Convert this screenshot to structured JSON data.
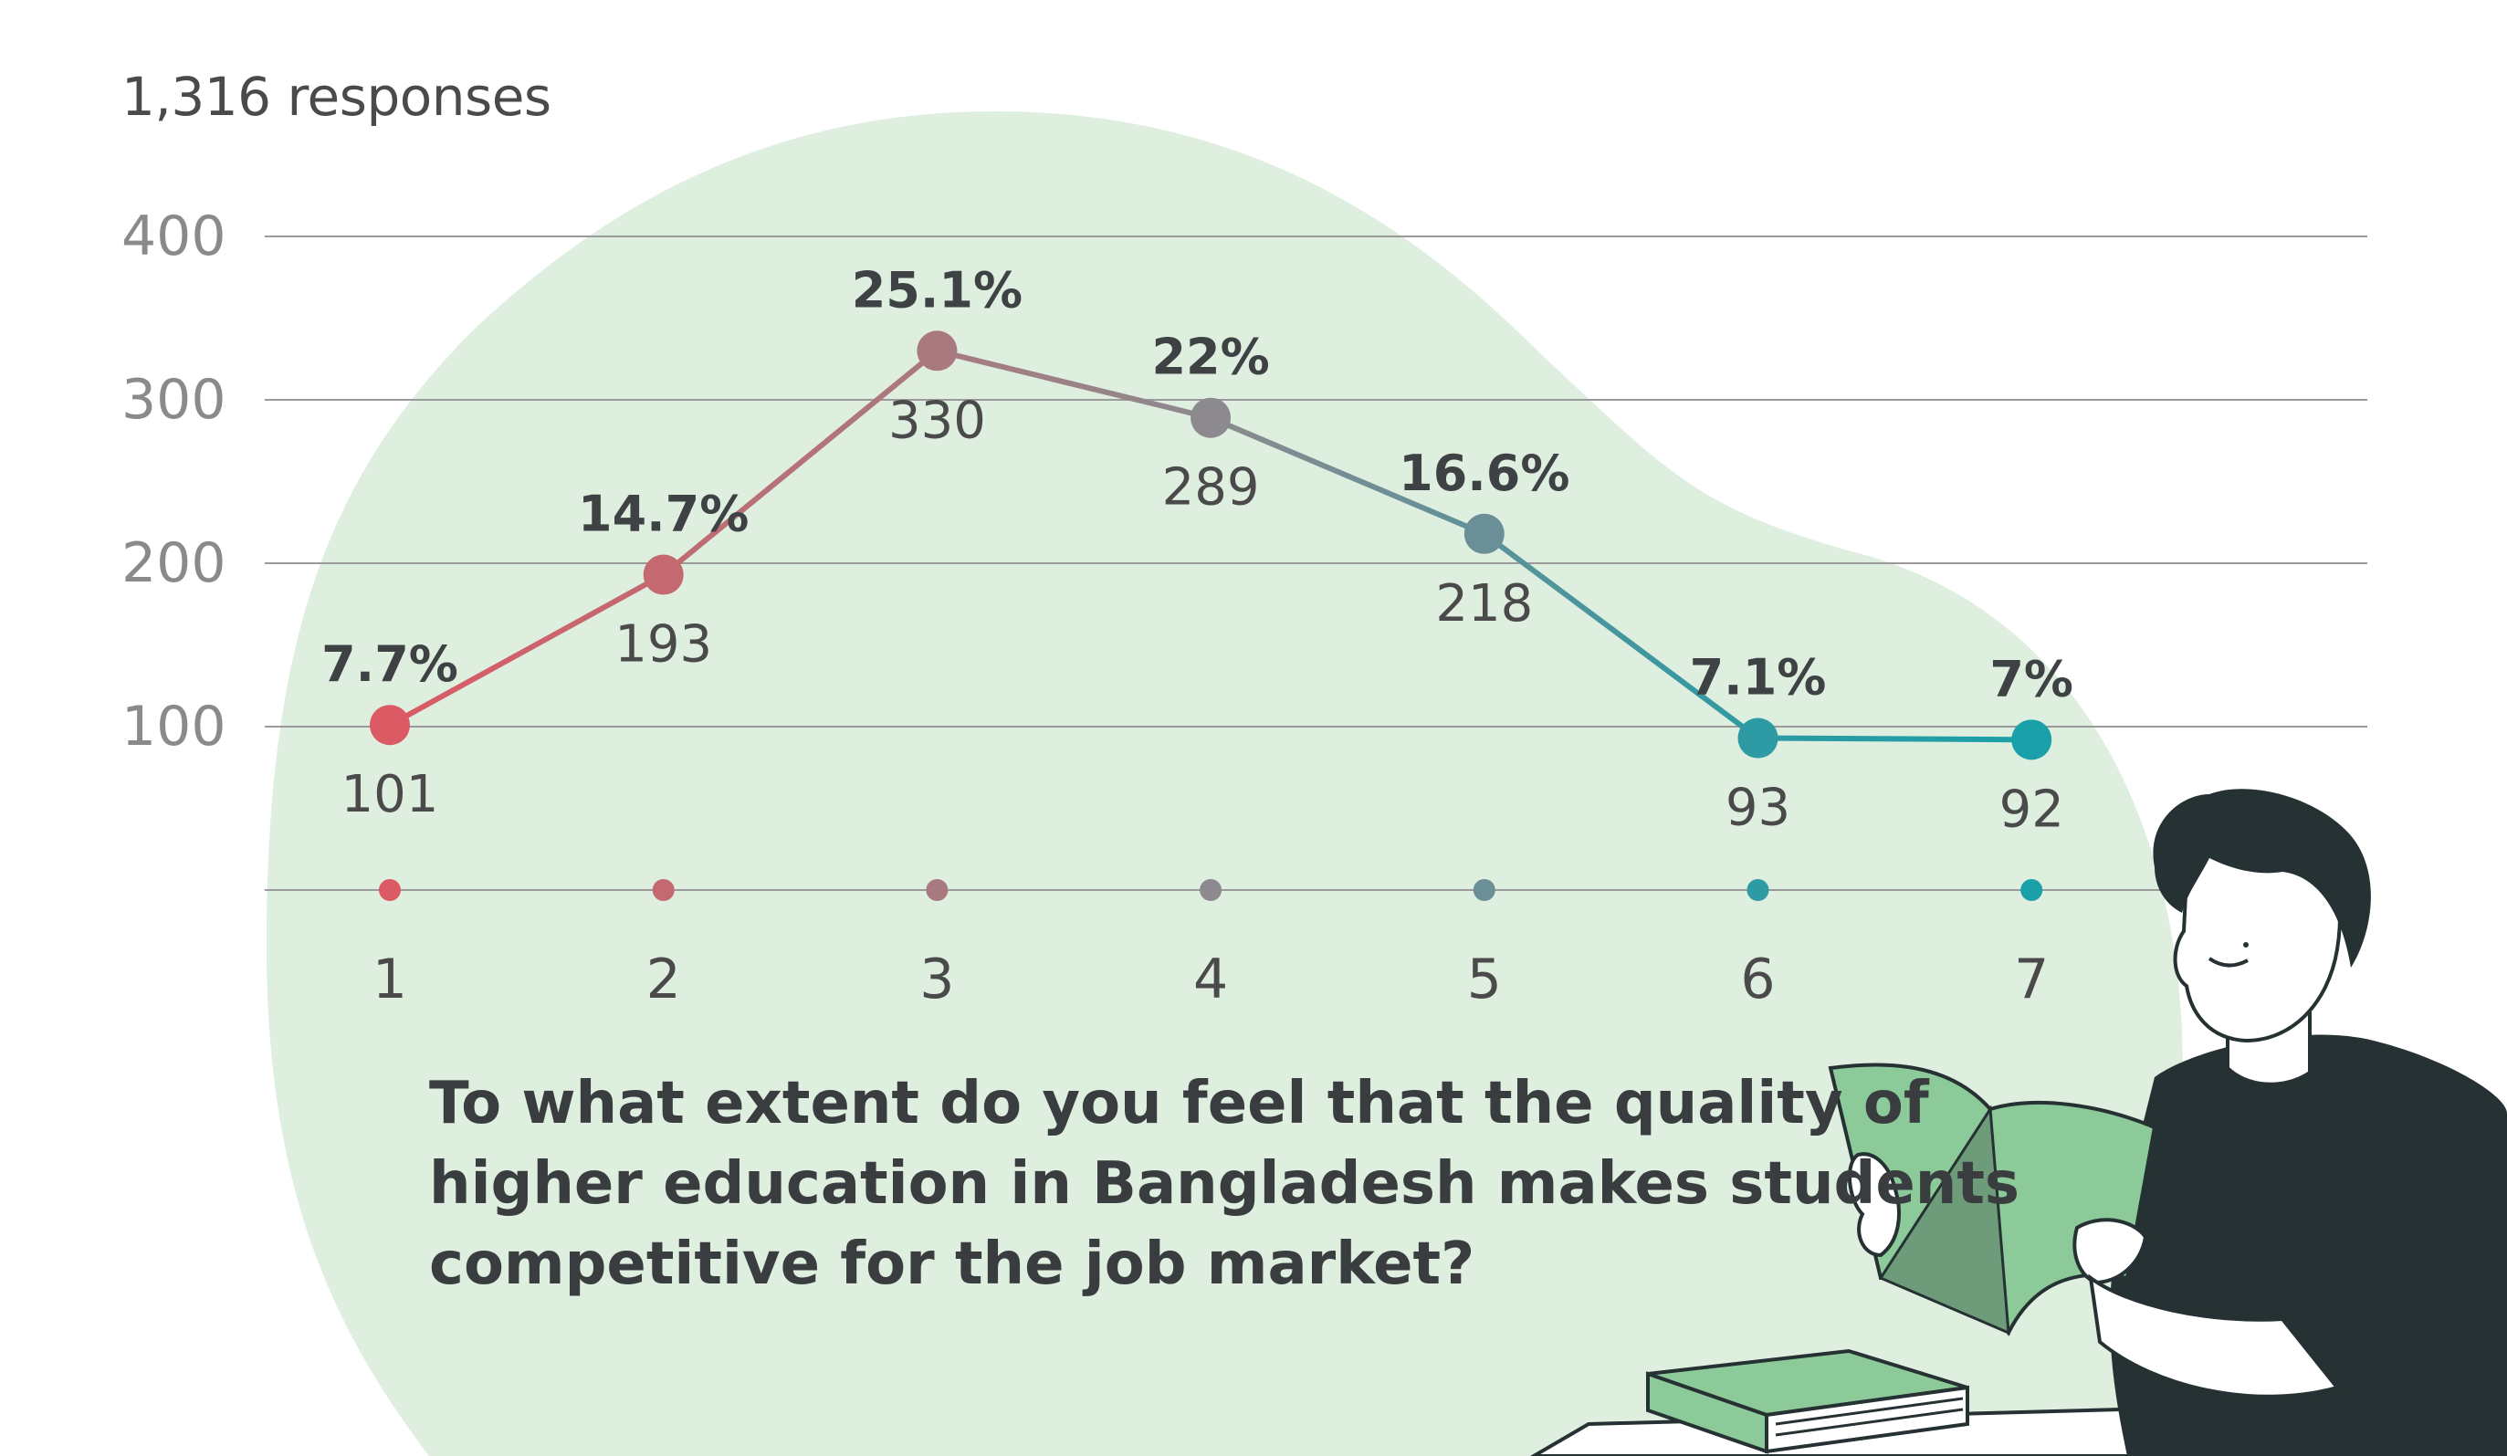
{
  "header": {
    "responses_label": "1,316 responses"
  },
  "question": {
    "lines": [
      "To what extent do you feel that the quality of",
      "higher education in Bangladesh makes students",
      "competitive for the job market?"
    ]
  },
  "chart_data": {
    "type": "line",
    "title": "",
    "xlabel": "",
    "ylabel": "",
    "x": [
      "1",
      "2",
      "3",
      "4",
      "5",
      "6",
      "7"
    ],
    "y_ticks": [
      "100",
      "200",
      "300",
      "400"
    ],
    "ylim": [
      0,
      400
    ],
    "grid": true,
    "series": [
      {
        "values": [
          101,
          193,
          330,
          289,
          218,
          93,
          92
        ],
        "percent_labels": [
          "7.7%",
          "14.7%",
          "25.1%",
          "22%",
          "16.6%",
          "7.1%",
          "7%"
        ],
        "count_labels": [
          "101",
          "193",
          "330",
          "289",
          "218",
          "93",
          "92"
        ]
      }
    ],
    "colors": [
      "#db5a64",
      "#c46970",
      "#a87a7f",
      "#8c8a8f",
      "#6a8f96",
      "#2e9aa3",
      "#1aa0a8"
    ],
    "value_label_color": "#4a4a4a",
    "percent_label_color": "#3f4244",
    "gridline_color": "#9a9a9a",
    "background_blob_color": "#deeedf"
  }
}
